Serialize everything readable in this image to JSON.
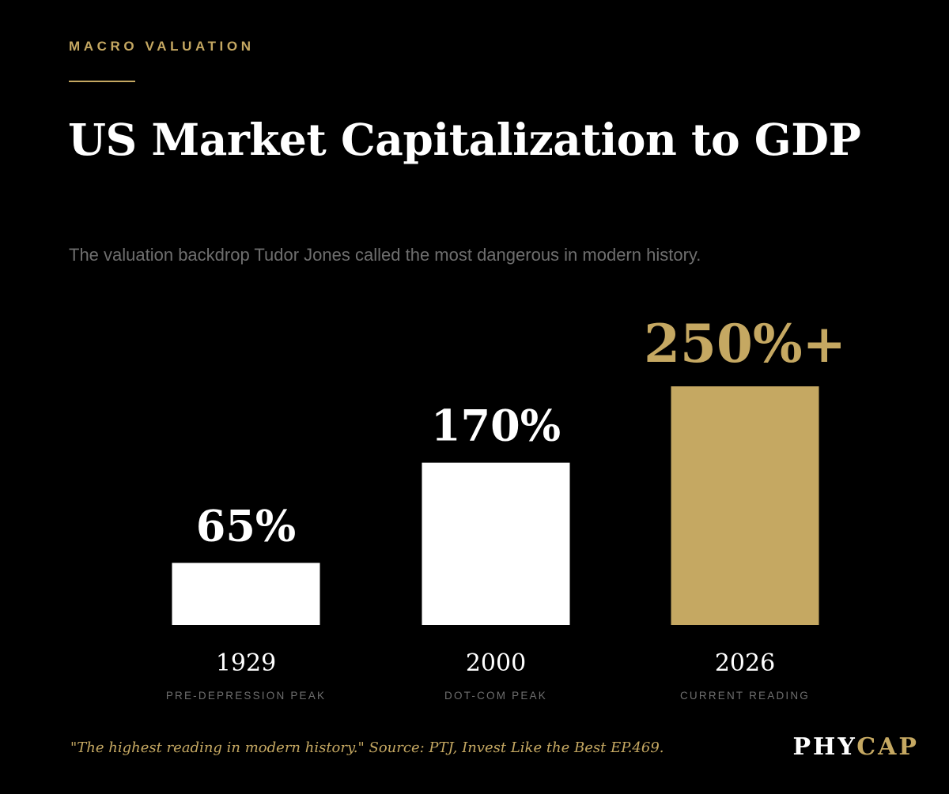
{
  "header": {
    "eyebrow": "MACRO VALUATION",
    "title": "US Market Capitalization to GDP",
    "subtitle": "The valuation backdrop Tudor Jones called the most dangerous in modern history."
  },
  "footer": {
    "note": "\"The highest reading in modern history.\" Source: PTJ, Invest Like the Best EP.469.",
    "brand_part1": "PHY",
    "brand_part2": "CAP"
  },
  "colors": {
    "background": "#000000",
    "accent_gold": "#c5a862",
    "bar_default": "#ffffff",
    "muted_text": "#6e6e6e"
  },
  "chart_data": {
    "type": "bar",
    "categories": [
      "1929",
      "2000",
      "2026"
    ],
    "category_sublabels": [
      "PRE-DEPRESSION PEAK",
      "DOT-COM PEAK",
      "CURRENT READING"
    ],
    "values": [
      65,
      170,
      250
    ],
    "value_labels": [
      "65%",
      "170%",
      "250%+"
    ],
    "highlight_index": 2,
    "grid": false,
    "legend": "none",
    "ylim": [
      0,
      300
    ]
  }
}
